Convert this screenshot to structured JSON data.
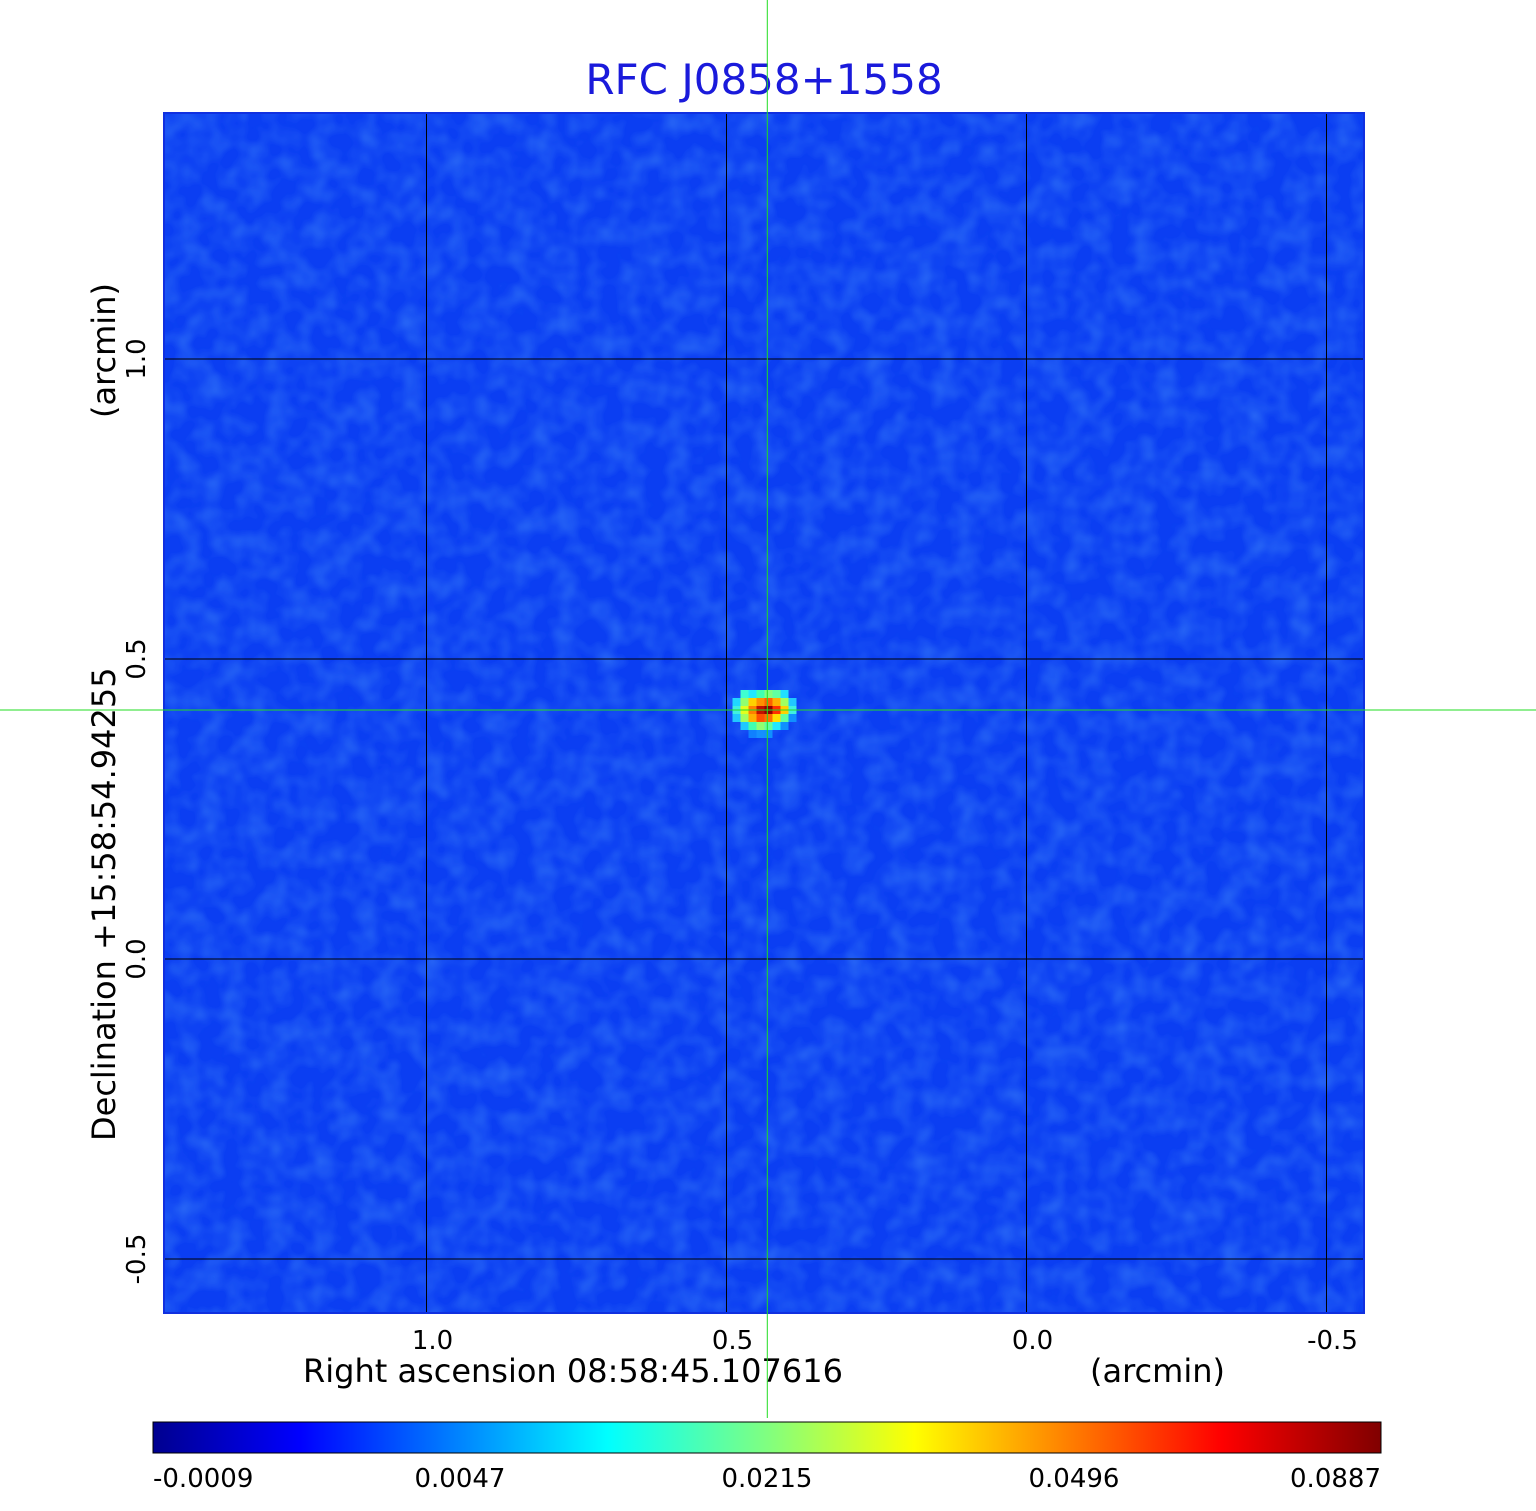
{
  "chart_data": {
    "type": "heatmap",
    "title": "RFC J0858+1558",
    "xlabel": "Right ascension  08:58:45.107616",
    "xunit": "(arcmin)",
    "ylabel": "Declination  +15:58:54.94255",
    "yunit": "(arcmin)",
    "x_ticks": [
      {
        "value": 1.0,
        "label": "1.0"
      },
      {
        "value": 0.5,
        "label": "0.5"
      },
      {
        "value": 0.0,
        "label": "0.0"
      },
      {
        "value": -0.5,
        "label": "-0.5"
      }
    ],
    "y_ticks": [
      {
        "value": 1.0,
        "label": "1.0"
      },
      {
        "value": 0.5,
        "label": "0.5"
      },
      {
        "value": 0.0,
        "label": "0.0"
      },
      {
        "value": -0.5,
        "label": "-0.5"
      }
    ],
    "xlim": [
      1.4375,
      -0.5625
    ],
    "ylim": [
      -0.59,
      1.41
    ],
    "grid": true,
    "crosshair": {
      "x": 0.432,
      "y": 0.415
    },
    "source_peak": {
      "x": 0.43,
      "y": 0.415,
      "value": 0.0887
    },
    "background_level": 0.0,
    "colorbar": {
      "colormap": "jet",
      "tick_labels": [
        "-0.0009",
        "0.0047",
        "0.0215",
        "0.0496",
        "0.0887"
      ],
      "min": -0.0009,
      "max": 0.0887
    }
  }
}
